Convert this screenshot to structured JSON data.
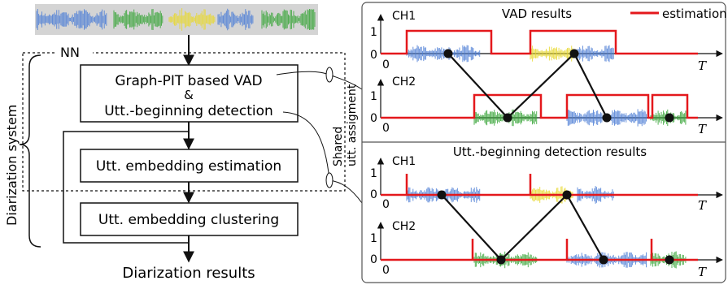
{
  "left": {
    "system_label": "Diarization system",
    "nn_label": "NN",
    "blocks": {
      "vad_line1": "Graph-PIT based VAD",
      "amp": "&",
      "vad_line2": "Utt.-beginning detection",
      "embedding_estimation": "Utt. embedding estimation",
      "embedding_clustering": "Utt. embedding clustering"
    },
    "output_label": "Diarization results",
    "shared_label_1": "Shared",
    "shared_label_2": "utt. assigment"
  },
  "right": {
    "top_panel": {
      "title": "VAD results",
      "legend_label": "estimation",
      "ch1": "CH1",
      "ch2": "CH2",
      "y_one": "1",
      "y_zero": "0",
      "x_zero": "0",
      "x_axis": "T"
    },
    "bottom_panel": {
      "title": "Utt.-beginning detection results",
      "ch1": "CH1",
      "ch2": "CH2",
      "y_one": "1",
      "y_zero": "0",
      "x_zero": "0",
      "x_axis": "T"
    }
  },
  "colors": {
    "estimation": "#e4181c",
    "speaker_blue": "#4f7fd6",
    "speaker_green": "#3aa63a",
    "speaker_yellow": "#e7d82f",
    "assignment_line": "#000000",
    "waveform_bg": "#d4d4d4"
  }
}
